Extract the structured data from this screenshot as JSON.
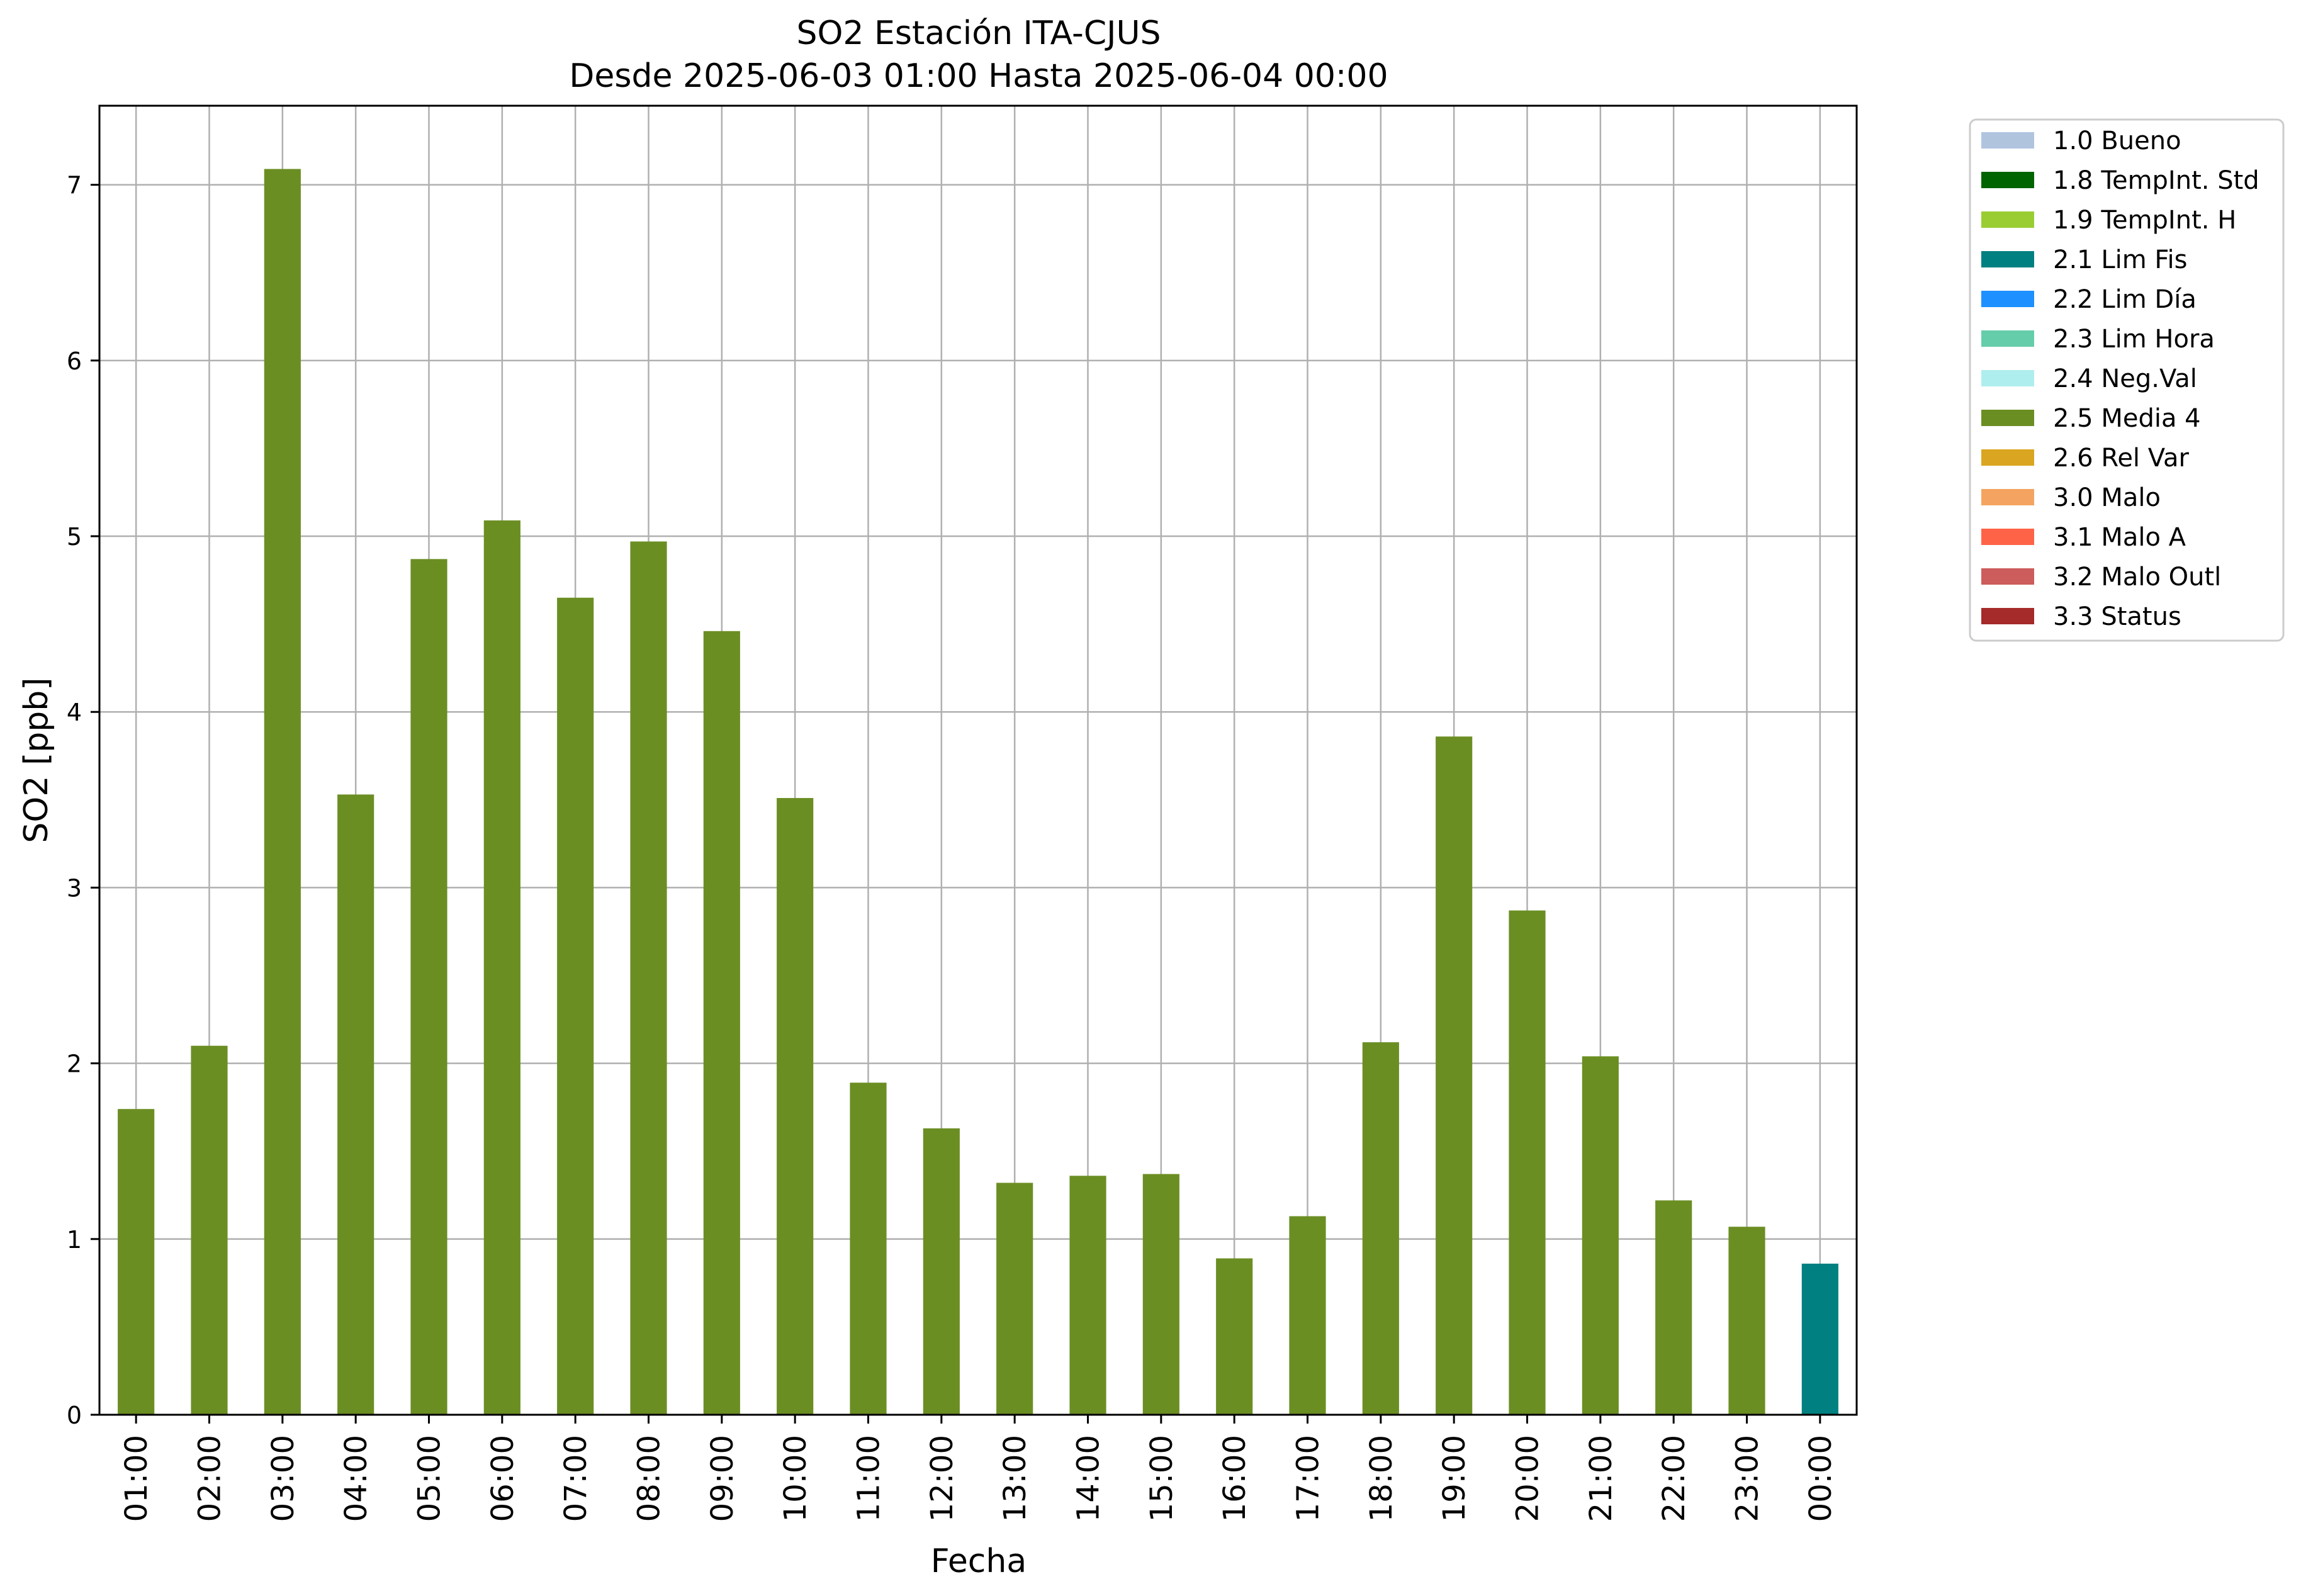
{
  "chart_data": {
    "type": "bar",
    "title": "SO2 Estación ITA-CJUS",
    "subtitle": "Desde 2025-06-03 01:00 Hasta 2025-06-04 00:00",
    "xlabel": "Fecha",
    "ylabel": "SO2 [ppb]",
    "ylim": [
      0,
      7.45
    ],
    "yticks": [
      "0",
      "1",
      "2",
      "3",
      "4",
      "5",
      "6",
      "7"
    ],
    "grid": true,
    "legend_position": "outside-top-right",
    "categories": [
      "01:00",
      "02:00",
      "03:00",
      "04:00",
      "05:00",
      "06:00",
      "07:00",
      "08:00",
      "09:00",
      "10:00",
      "11:00",
      "12:00",
      "13:00",
      "14:00",
      "15:00",
      "16:00",
      "17:00",
      "18:00",
      "19:00",
      "20:00",
      "21:00",
      "22:00",
      "23:00",
      "00:00"
    ],
    "values": [
      1.74,
      2.1,
      7.09,
      3.53,
      4.87,
      5.09,
      4.65,
      4.97,
      4.46,
      3.51,
      1.89,
      1.63,
      1.32,
      1.36,
      1.37,
      0.89,
      1.13,
      2.12,
      3.86,
      2.87,
      2.04,
      1.22,
      1.07,
      0.86
    ],
    "flags": [
      "2.5 Media 4",
      "2.5 Media 4",
      "2.5 Media 4",
      "2.5 Media 4",
      "2.5 Media 4",
      "2.5 Media 4",
      "2.5 Media 4",
      "2.5 Media 4",
      "2.5 Media 4",
      "2.5 Media 4",
      "2.5 Media 4",
      "2.5 Media 4",
      "2.5 Media 4",
      "2.5 Media 4",
      "2.5 Media 4",
      "2.5 Media 4",
      "2.5 Media 4",
      "2.5 Media 4",
      "2.5 Media 4",
      "2.5 Media 4",
      "2.5 Media 4",
      "2.5 Media 4",
      "2.5 Media 4",
      "2.1 Lim Fis"
    ],
    "legend": [
      {
        "label": "1.0 Bueno",
        "color": "#b0c4de"
      },
      {
        "label": "1.8 TempInt. Std",
        "color": "#006400"
      },
      {
        "label": "1.9 TempInt. H",
        "color": "#9acd32"
      },
      {
        "label": "2.1 Lim Fis",
        "color": "#008080"
      },
      {
        "label": "2.2 Lim Día",
        "color": "#1e90ff"
      },
      {
        "label": "2.3 Lim Hora",
        "color": "#66cdaa"
      },
      {
        "label": "2.4 Neg.Val",
        "color": "#afeeee"
      },
      {
        "label": "2.5 Media 4",
        "color": "#6b8e23"
      },
      {
        "label": "2.6 Rel Var",
        "color": "#daa520"
      },
      {
        "label": "3.0 Malo",
        "color": "#f4a460"
      },
      {
        "label": "3.1 Malo A",
        "color": "#ff6347"
      },
      {
        "label": "3.2 Malo Outl",
        "color": "#cd5c5c"
      },
      {
        "label": "3.3 Status",
        "color": "#a52a2a"
      }
    ]
  }
}
